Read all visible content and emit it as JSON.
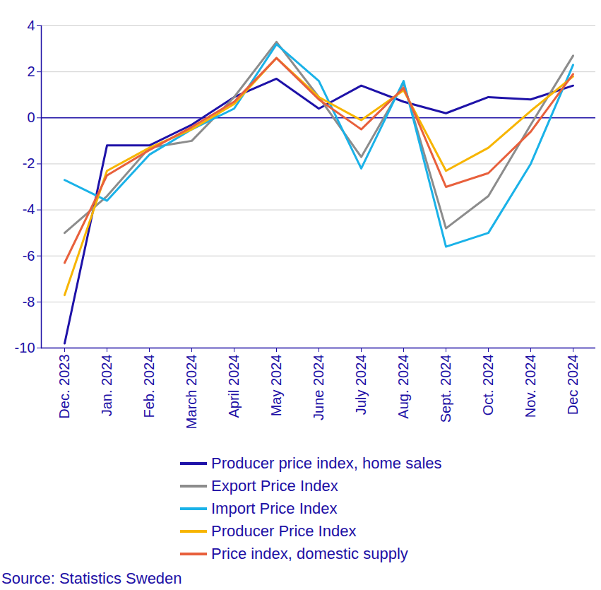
{
  "chart_data": {
    "type": "line",
    "categories": [
      "Dec. 2023",
      "Jan. 2024",
      "Feb. 2024",
      "March 2024",
      "April 2024",
      "May 2024",
      "June 2024",
      "July 2024",
      "Aug. 2024",
      "Sept. 2024",
      "Oct. 2024",
      "Nov. 2024",
      "Dec 2024"
    ],
    "series": [
      {
        "name": "Producer price index, home sales",
        "color": "#1e12a8",
        "values": [
          -9.8,
          -1.2,
          -1.2,
          -0.3,
          0.9,
          1.7,
          0.4,
          1.4,
          0.7,
          0.2,
          0.9,
          0.8,
          1.4
        ]
      },
      {
        "name": "Export Price Index",
        "color": "#8c8c8c",
        "values": [
          -5.0,
          -3.4,
          -1.3,
          -1.0,
          0.9,
          3.3,
          0.9,
          -1.7,
          1.5,
          -4.8,
          -3.4,
          -0.3,
          2.7
        ]
      },
      {
        "name": "Import Price Index",
        "color": "#1ab2e8",
        "values": [
          -2.7,
          -3.6,
          -1.6,
          -0.5,
          0.4,
          3.2,
          1.6,
          -2.2,
          1.6,
          -5.6,
          -5.0,
          -2.0,
          2.3
        ]
      },
      {
        "name": "Producer Price Index",
        "color": "#f7b500",
        "values": [
          -7.7,
          -2.3,
          -1.3,
          -0.5,
          0.6,
          2.6,
          0.9,
          -0.1,
          1.2,
          -2.3,
          -1.3,
          0.3,
          1.8
        ]
      },
      {
        "name": "Price index, domestic supply",
        "color": "#e8603c",
        "values": [
          -6.3,
          -2.5,
          -1.4,
          -0.4,
          0.7,
          2.6,
          0.8,
          -0.5,
          1.3,
          -3.0,
          -2.4,
          -0.6,
          1.9
        ]
      }
    ],
    "ylim": [
      -10,
      4
    ],
    "yticks": [
      -10,
      -8,
      -6,
      -4,
      -2,
      0,
      2,
      4
    ],
    "grid": true,
    "legend": "bottom",
    "caption": "Source: Statistics Sweden"
  }
}
